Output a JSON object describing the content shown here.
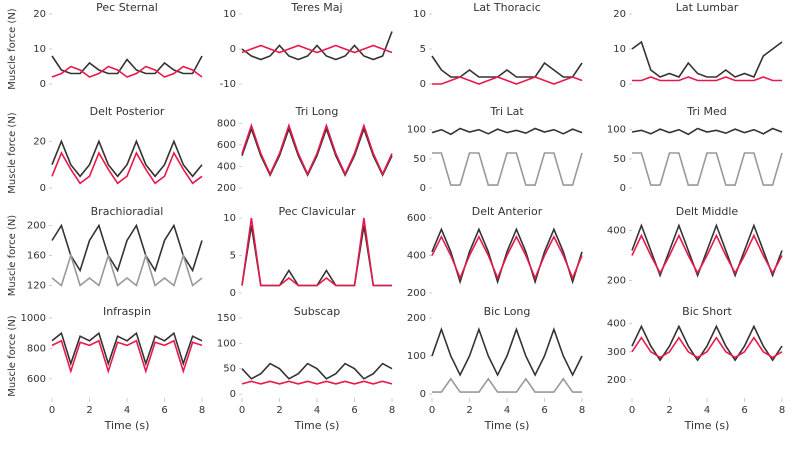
{
  "chart_data": [
    {
      "type": "line",
      "title": "Pec Sternal",
      "ylabel": "Muscle force (N)",
      "xlim": [
        0,
        8
      ],
      "ylim": [
        0,
        20
      ],
      "yticks": [
        0,
        10,
        20
      ],
      "x": [
        0,
        0.5,
        1,
        1.5,
        2,
        2.5,
        3,
        3.5,
        4,
        4.5,
        5,
        5.5,
        6,
        6.5,
        7,
        7.5,
        8
      ],
      "series": [
        {
          "color": "#333333",
          "values": [
            8,
            4,
            3,
            3,
            6,
            4,
            3,
            3,
            7,
            4,
            3,
            3,
            6,
            4,
            3,
            3,
            8
          ]
        },
        {
          "color": "#e8194a",
          "values": [
            2,
            3,
            5,
            4,
            2,
            3,
            5,
            4,
            2,
            3,
            5,
            4,
            2,
            3,
            5,
            4,
            2
          ]
        }
      ]
    },
    {
      "type": "line",
      "title": "Teres Maj",
      "xlim": [
        0,
        8
      ],
      "ylim": [
        -10,
        10
      ],
      "yticks": [
        -10,
        0,
        10
      ],
      "x": [
        0,
        0.5,
        1,
        1.5,
        2,
        2.5,
        3,
        3.5,
        4,
        4.5,
        5,
        5.5,
        6,
        6.5,
        7,
        7.5,
        8
      ],
      "series": [
        {
          "color": "#333333",
          "values": [
            0,
            -2,
            -3,
            -2,
            1,
            -2,
            -3,
            -2,
            1,
            -2,
            -3,
            -2,
            1,
            -2,
            -3,
            -2,
            5
          ]
        },
        {
          "color": "#e8194a",
          "values": [
            -1,
            0,
            1,
            0,
            -1,
            0,
            1,
            0,
            -1,
            0,
            1,
            0,
            -1,
            0,
            1,
            0,
            -1
          ]
        }
      ]
    },
    {
      "type": "line",
      "title": "Lat Thoracic",
      "xlim": [
        0,
        8
      ],
      "ylim": [
        0,
        10
      ],
      "yticks": [
        0,
        5,
        10
      ],
      "x": [
        0,
        0.5,
        1,
        1.5,
        2,
        2.5,
        3,
        3.5,
        4,
        4.5,
        5,
        5.5,
        6,
        6.5,
        7,
        7.5,
        8
      ],
      "series": [
        {
          "color": "#333333",
          "values": [
            4,
            2,
            1,
            1,
            2,
            1,
            1,
            1,
            2,
            1,
            1,
            1,
            3,
            2,
            1,
            1,
            3
          ]
        },
        {
          "color": "#e8194a",
          "values": [
            0,
            0,
            0.5,
            1,
            0.5,
            0,
            0.5,
            1,
            0.5,
            0,
            0.5,
            1,
            0.5,
            0,
            0.5,
            1,
            0.5
          ]
        }
      ]
    },
    {
      "type": "line",
      "title": "Lat Lumbar",
      "xlim": [
        0,
        8
      ],
      "ylim": [
        0,
        20
      ],
      "yticks": [
        0,
        10,
        20
      ],
      "x": [
        0,
        0.5,
        1,
        1.5,
        2,
        2.5,
        3,
        3.5,
        4,
        4.5,
        5,
        5.5,
        6,
        6.5,
        7,
        7.5,
        8
      ],
      "series": [
        {
          "color": "#333333",
          "values": [
            10,
            12,
            4,
            2,
            3,
            2,
            6,
            3,
            2,
            2,
            4,
            2,
            3,
            2,
            8,
            10,
            12
          ]
        },
        {
          "color": "#e8194a",
          "values": [
            1,
            1,
            2,
            1,
            1,
            1,
            2,
            1,
            1,
            1,
            2,
            1,
            1,
            1,
            2,
            1,
            1
          ]
        }
      ]
    },
    {
      "type": "line",
      "title": "Delt Posterior",
      "ylabel": "Muscle force (N)",
      "xlim": [
        0,
        8
      ],
      "ylim": [
        0,
        30
      ],
      "yticks": [
        0,
        20
      ],
      "x": [
        0,
        0.5,
        1,
        1.5,
        2,
        2.5,
        3,
        3.5,
        4,
        4.5,
        5,
        5.5,
        6,
        6.5,
        7,
        7.5,
        8
      ],
      "series": [
        {
          "color": "#333333",
          "values": [
            10,
            20,
            10,
            5,
            10,
            20,
            10,
            5,
            10,
            20,
            10,
            5,
            10,
            20,
            10,
            5,
            10
          ]
        },
        {
          "color": "#e8194a",
          "values": [
            5,
            15,
            8,
            2,
            5,
            15,
            8,
            2,
            5,
            15,
            8,
            2,
            5,
            15,
            8,
            2,
            5
          ]
        }
      ]
    },
    {
      "type": "line",
      "title": "Tri Long",
      "xlim": [
        0,
        8
      ],
      "ylim": [
        200,
        850
      ],
      "yticks": [
        200,
        400,
        600,
        800
      ],
      "x": [
        0,
        0.5,
        1,
        1.5,
        2,
        2.5,
        3,
        3.5,
        4,
        4.5,
        5,
        5.5,
        6,
        6.5,
        7,
        7.5,
        8
      ],
      "series": [
        {
          "color": "#333333",
          "values": [
            500,
            750,
            500,
            320,
            500,
            750,
            500,
            320,
            500,
            750,
            500,
            320,
            500,
            750,
            500,
            320,
            500
          ]
        },
        {
          "color": "#e8194a",
          "values": [
            520,
            780,
            520,
            330,
            520,
            780,
            520,
            330,
            520,
            780,
            520,
            330,
            520,
            780,
            520,
            330,
            520
          ]
        }
      ]
    },
    {
      "type": "line",
      "title": "Tri Lat",
      "xlim": [
        0,
        8
      ],
      "ylim": [
        0,
        120
      ],
      "yticks": [
        0,
        50,
        100
      ],
      "x": [
        0,
        0.5,
        1,
        1.5,
        2,
        2.5,
        3,
        3.5,
        4,
        4.5,
        5,
        5.5,
        6,
        6.5,
        7,
        7.5,
        8
      ],
      "series": [
        {
          "color": "#333333",
          "values": [
            95,
            100,
            92,
            102,
            96,
            100,
            93,
            101,
            95,
            99,
            94,
            102,
            96,
            100,
            93,
            101,
            95
          ]
        },
        {
          "color": "#999999",
          "values": [
            60,
            60,
            5,
            5,
            60,
            60,
            5,
            5,
            60,
            60,
            5,
            5,
            60,
            60,
            5,
            5,
            60
          ]
        }
      ]
    },
    {
      "type": "line",
      "title": "Tri Med",
      "xlim": [
        0,
        8
      ],
      "ylim": [
        0,
        120
      ],
      "yticks": [
        0,
        50,
        100
      ],
      "x": [
        0,
        0.5,
        1,
        1.5,
        2,
        2.5,
        3,
        3.5,
        4,
        4.5,
        5,
        5.5,
        6,
        6.5,
        7,
        7.5,
        8
      ],
      "series": [
        {
          "color": "#333333",
          "values": [
            96,
            99,
            93,
            101,
            95,
            100,
            92,
            102,
            96,
            99,
            94,
            101,
            95,
            100,
            93,
            102,
            96
          ]
        },
        {
          "color": "#999999",
          "values": [
            60,
            60,
            5,
            5,
            60,
            60,
            5,
            5,
            60,
            60,
            5,
            5,
            60,
            60,
            5,
            5,
            60
          ]
        }
      ]
    },
    {
      "type": "line",
      "title": "Brachioradial",
      "ylabel": "Muscle force (N)",
      "xlim": [
        0,
        8
      ],
      "ylim": [
        110,
        210
      ],
      "yticks": [
        120,
        160,
        200
      ],
      "x": [
        0,
        0.5,
        1,
        1.5,
        2,
        2.5,
        3,
        3.5,
        4,
        4.5,
        5,
        5.5,
        6,
        6.5,
        7,
        7.5,
        8
      ],
      "series": [
        {
          "color": "#333333",
          "values": [
            180,
            200,
            160,
            140,
            180,
            200,
            160,
            140,
            180,
            200,
            160,
            140,
            180,
            200,
            160,
            140,
            180
          ]
        },
        {
          "color": "#999999",
          "values": [
            130,
            120,
            160,
            120,
            130,
            120,
            160,
            120,
            130,
            120,
            160,
            120,
            130,
            120,
            160,
            120,
            130
          ]
        }
      ]
    },
    {
      "type": "line",
      "title": "Pec Clavicular",
      "xlim": [
        0,
        8
      ],
      "ylim": [
        0,
        10
      ],
      "yticks": [
        0,
        5,
        10
      ],
      "x": [
        0,
        0.5,
        1,
        1.5,
        2,
        2.5,
        3,
        3.5,
        4,
        4.5,
        5,
        5.5,
        6,
        6.5,
        7,
        7.5,
        8
      ],
      "series": [
        {
          "color": "#333333",
          "values": [
            1,
            9,
            1,
            1,
            1,
            3,
            1,
            1,
            1,
            3,
            1,
            1,
            1,
            9,
            1,
            1,
            1
          ]
        },
        {
          "color": "#e8194a",
          "values": [
            1,
            10,
            1,
            1,
            1,
            2,
            1,
            1,
            1,
            2,
            1,
            1,
            1,
            10,
            1,
            1,
            1
          ]
        }
      ]
    },
    {
      "type": "line",
      "title": "Delt Anterior",
      "xlim": [
        0,
        8
      ],
      "ylim": [
        200,
        600
      ],
      "yticks": [
        200,
        400,
        600
      ],
      "x": [
        0,
        0.5,
        1,
        1.5,
        2,
        2.5,
        3,
        3.5,
        4,
        4.5,
        5,
        5.5,
        6,
        6.5,
        7,
        7.5,
        8
      ],
      "series": [
        {
          "color": "#333333",
          "values": [
            420,
            540,
            420,
            260,
            420,
            540,
            420,
            260,
            420,
            540,
            420,
            260,
            420,
            540,
            420,
            260,
            420
          ]
        },
        {
          "color": "#e8194a",
          "values": [
            400,
            500,
            400,
            280,
            400,
            500,
            400,
            280,
            400,
            500,
            400,
            280,
            400,
            500,
            400,
            280,
            400
          ]
        }
      ]
    },
    {
      "type": "line",
      "title": "Delt Middle",
      "xlim": [
        0,
        8
      ],
      "ylim": [
        150,
        450
      ],
      "yticks": [
        200,
        400
      ],
      "x": [
        0,
        0.5,
        1,
        1.5,
        2,
        2.5,
        3,
        3.5,
        4,
        4.5,
        5,
        5.5,
        6,
        6.5,
        7,
        7.5,
        8
      ],
      "series": [
        {
          "color": "#333333",
          "values": [
            320,
            420,
            320,
            220,
            320,
            420,
            320,
            220,
            320,
            420,
            320,
            220,
            320,
            420,
            320,
            220,
            320
          ]
        },
        {
          "color": "#e8194a",
          "values": [
            300,
            380,
            300,
            230,
            300,
            380,
            300,
            230,
            300,
            380,
            300,
            230,
            300,
            380,
            300,
            230,
            300
          ]
        }
      ]
    },
    {
      "type": "line",
      "title": "Infraspin",
      "ylabel": "Muscle force (N)",
      "xlabel": "Time (s)",
      "xlim": [
        0,
        8
      ],
      "xticks": [
        0,
        2,
        4,
        6,
        8
      ],
      "ylim": [
        500,
        1000
      ],
      "yticks": [
        600,
        800,
        1000
      ],
      "x": [
        0,
        0.5,
        1,
        1.5,
        2,
        2.5,
        3,
        3.5,
        4,
        4.5,
        5,
        5.5,
        6,
        6.5,
        7,
        7.5,
        8
      ],
      "series": [
        {
          "color": "#333333",
          "values": [
            850,
            900,
            700,
            880,
            850,
            900,
            700,
            880,
            850,
            900,
            700,
            880,
            850,
            900,
            700,
            880,
            850
          ]
        },
        {
          "color": "#e8194a",
          "values": [
            820,
            850,
            650,
            840,
            820,
            850,
            650,
            840,
            820,
            850,
            650,
            840,
            820,
            850,
            650,
            840,
            820
          ]
        }
      ]
    },
    {
      "type": "line",
      "title": "Subscap",
      "xlabel": "Time (s)",
      "xlim": [
        0,
        8
      ],
      "xticks": [
        0,
        2,
        4,
        6,
        8
      ],
      "ylim": [
        0,
        150
      ],
      "yticks": [
        0,
        50,
        100,
        150
      ],
      "x": [
        0,
        0.5,
        1,
        1.5,
        2,
        2.5,
        3,
        3.5,
        4,
        4.5,
        5,
        5.5,
        6,
        6.5,
        7,
        7.5,
        8
      ],
      "series": [
        {
          "color": "#333333",
          "values": [
            50,
            30,
            40,
            60,
            50,
            30,
            40,
            60,
            50,
            30,
            40,
            60,
            50,
            30,
            40,
            60,
            50
          ]
        },
        {
          "color": "#e8194a",
          "values": [
            20,
            25,
            20,
            25,
            20,
            25,
            20,
            25,
            20,
            25,
            20,
            25,
            20,
            25,
            20,
            25,
            20
          ]
        }
      ]
    },
    {
      "type": "line",
      "title": "Bic Long",
      "xlabel": "Time (s)",
      "xlim": [
        0,
        8
      ],
      "xticks": [
        0,
        2,
        4,
        6,
        8
      ],
      "ylim": [
        0,
        200
      ],
      "yticks": [
        0,
        100,
        200
      ],
      "x": [
        0,
        0.5,
        1,
        1.5,
        2,
        2.5,
        3,
        3.5,
        4,
        4.5,
        5,
        5.5,
        6,
        6.5,
        7,
        7.5,
        8
      ],
      "series": [
        {
          "color": "#333333",
          "values": [
            100,
            170,
            100,
            50,
            100,
            170,
            100,
            50,
            100,
            170,
            100,
            50,
            100,
            170,
            100,
            50,
            100
          ]
        },
        {
          "color": "#999999",
          "values": [
            5,
            5,
            40,
            5,
            5,
            5,
            40,
            5,
            5,
            5,
            40,
            5,
            5,
            5,
            40,
            5,
            5
          ]
        }
      ]
    },
    {
      "type": "line",
      "title": "Bic Short",
      "xlabel": "Time (s)",
      "xlim": [
        0,
        8
      ],
      "xticks": [
        0,
        2,
        4,
        6,
        8
      ],
      "ylim": [
        150,
        420
      ],
      "yticks": [
        200,
        300,
        400
      ],
      "x": [
        0,
        0.5,
        1,
        1.5,
        2,
        2.5,
        3,
        3.5,
        4,
        4.5,
        5,
        5.5,
        6,
        6.5,
        7,
        7.5,
        8
      ],
      "series": [
        {
          "color": "#333333",
          "values": [
            320,
            390,
            320,
            270,
            320,
            390,
            320,
            270,
            320,
            390,
            320,
            270,
            320,
            390,
            320,
            270,
            320
          ]
        },
        {
          "color": "#e8194a",
          "values": [
            300,
            350,
            300,
            280,
            300,
            350,
            300,
            280,
            300,
            350,
            300,
            280,
            300,
            350,
            300,
            280,
            300
          ]
        }
      ]
    }
  ]
}
